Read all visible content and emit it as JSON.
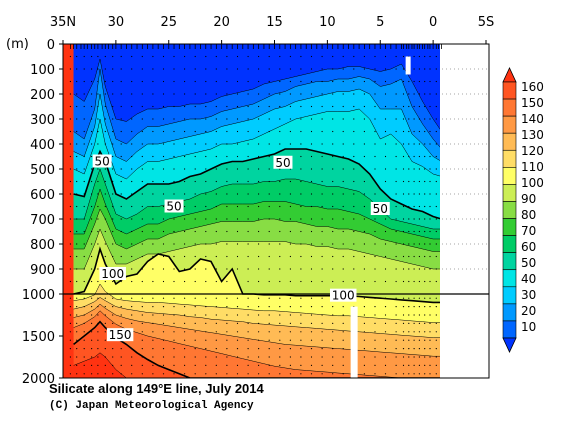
{
  "chart_data": {
    "type": "heatmap",
    "title": "Silicate along 149°E line, July 2014",
    "credit": "(C) Japan Meteorological Agency",
    "ylabel": "(m)",
    "x_ticks": [
      "35N",
      "30",
      "25",
      "20",
      "15",
      "10",
      "5",
      "0",
      "5S"
    ],
    "x_tick_values": [
      35,
      30,
      25,
      20,
      15,
      10,
      5,
      0,
      -5
    ],
    "xlim": [
      35,
      -5
    ],
    "y_ticks_upper": [
      "0",
      "100",
      "200",
      "300",
      "400",
      "500",
      "600",
      "700",
      "800",
      "900",
      "1000"
    ],
    "y_tick_values_upper": [
      0,
      100,
      200,
      300,
      400,
      500,
      600,
      700,
      800,
      900,
      1000
    ],
    "y_ticks_lower": [
      "1500",
      "2000"
    ],
    "y_tick_values_lower": [
      1500,
      2000
    ],
    "ylim": [
      0,
      2000
    ],
    "colorbar_levels": [
      "10",
      "20",
      "30",
      "40",
      "50",
      "60",
      "70",
      "80",
      "90",
      "100",
      "110",
      "120",
      "130",
      "140",
      "150",
      "160"
    ],
    "colorbar_colors": [
      "#0033ff",
      "#0066ff",
      "#0099ff",
      "#00ccff",
      "#00e5e5",
      "#00d4a0",
      "#00cc66",
      "#33cc33",
      "#88dd44",
      "#ccee55",
      "#ffff66",
      "#ffdd66",
      "#ffbb55",
      "#ff9944",
      "#ff7733",
      "#ff5522",
      "#ff3311"
    ],
    "contour_labels": [
      {
        "text": "50",
        "lat": 31.3,
        "depth": 470
      },
      {
        "text": "50",
        "lat": 24.5,
        "depth": 650
      },
      {
        "text": "50",
        "lat": 14.2,
        "depth": 475
      },
      {
        "text": "50",
        "lat": 5.0,
        "depth": 660
      },
      {
        "text": "100",
        "lat": 30.3,
        "depth": 920
      },
      {
        "text": "100",
        "lat": 8.5,
        "depth": 1020
      },
      {
        "text": "150",
        "lat": 29.6,
        "depth": 1490
      }
    ],
    "stations": [
      34.3,
      34.0,
      33.7,
      33.3,
      33.0,
      32.7,
      32.3,
      32.0,
      31.7,
      31.3,
      31.0,
      30.7,
      30.3,
      30.0,
      29.5,
      29.0,
      28.5,
      28.0,
      27.5,
      27.0,
      26.5,
      26.0,
      25.5,
      25.0,
      24.5,
      24.0,
      23.5,
      23.0,
      22.5,
      22.0,
      21.5,
      21.0,
      20.5,
      20.0,
      19.5,
      19.0,
      18.5,
      18.0,
      17.5,
      17.0,
      16.5,
      16.0,
      15.5,
      15.0,
      14.5,
      14.0,
      13.5,
      13.0,
      12.5,
      12.0,
      11.5,
      11.0,
      10.5,
      10.0,
      9.5,
      9.0,
      8.5,
      8.0,
      7.5,
      7.0,
      6.5,
      6.0,
      5.5,
      5.0,
      4.5,
      4.0,
      3.5,
      3.0,
      2.8,
      2.5,
      2.3,
      2.0,
      1.8,
      1.5,
      1.3,
      1.0,
      0.8,
      0.5,
      0.3,
      0.0,
      -0.3,
      -0.5,
      -0.8
    ],
    "profile": {
      "lat": [
        34,
        33,
        32,
        31.5,
        31,
        30,
        29,
        28,
        27,
        26,
        25,
        24,
        23,
        22,
        21,
        20,
        19,
        18,
        17,
        16,
        15,
        14,
        13,
        12,
        11,
        10,
        9,
        8,
        7,
        6,
        5,
        4,
        3,
        2,
        1,
        0,
        -0.8
      ],
      "iso_depth": {
        "10": [
          200,
          230,
          140,
          60,
          170,
          300,
          310,
          280,
          260,
          260,
          250,
          250,
          240,
          240,
          230,
          210,
          200,
          190,
          180,
          160,
          150,
          140,
          130,
          120,
          110,
          100,
          100,
          90,
          90,
          100,
          110,
          100,
          80,
          150,
          230,
          300,
          350
        ],
        "20": [
          350,
          380,
          260,
          100,
          240,
          380,
          400,
          360,
          330,
          330,
          320,
          310,
          300,
          300,
          290,
          270,
          260,
          250,
          240,
          220,
          200,
          190,
          170,
          160,
          150,
          150,
          140,
          140,
          130,
          140,
          170,
          160,
          140,
          250,
          320,
          380,
          420
        ],
        "30": [
          430,
          450,
          330,
          200,
          320,
          450,
          470,
          430,
          400,
          400,
          390,
          380,
          370,
          360,
          350,
          330,
          320,
          310,
          300,
          280,
          260,
          250,
          230,
          220,
          210,
          200,
          190,
          190,
          180,
          200,
          260,
          260,
          260,
          360,
          400,
          450,
          470
        ],
        "40": [
          500,
          520,
          400,
          300,
          400,
          520,
          540,
          500,
          470,
          470,
          460,
          450,
          440,
          430,
          420,
          400,
          400,
          390,
          380,
          360,
          340,
          320,
          300,
          290,
          280,
          270,
          270,
          270,
          260,
          300,
          380,
          360,
          400,
          470,
          490,
          520,
          530
        ],
        "50": [
          600,
          610,
          480,
          430,
          470,
          600,
          620,
          590,
          560,
          560,
          560,
          550,
          530,
          520,
          500,
          480,
          470,
          470,
          460,
          450,
          440,
          420,
          420,
          420,
          430,
          440,
          450,
          460,
          480,
          520,
          580,
          620,
          640,
          660,
          670,
          690,
          700
        ],
        "60": [
          700,
          700,
          560,
          500,
          560,
          680,
          700,
          680,
          650,
          650,
          640,
          630,
          620,
          600,
          590,
          570,
          560,
          560,
          560,
          550,
          550,
          540,
          540,
          550,
          560,
          570,
          570,
          580,
          590,
          620,
          660,
          700,
          710,
          720,
          730,
          740,
          740
        ],
        "70": [
          760,
          760,
          650,
          580,
          640,
          740,
          760,
          740,
          720,
          720,
          700,
          690,
          680,
          670,
          660,
          640,
          640,
          640,
          640,
          630,
          630,
          630,
          640,
          650,
          650,
          660,
          660,
          670,
          680,
          700,
          720,
          740,
          750,
          760,
          770,
          780,
          780
        ],
        "80": [
          820,
          820,
          720,
          660,
          700,
          800,
          820,
          800,
          780,
          780,
          760,
          750,
          740,
          730,
          720,
          710,
          710,
          710,
          710,
          700,
          700,
          710,
          710,
          720,
          730,
          730,
          740,
          740,
          750,
          760,
          780,
          790,
          800,
          810,
          820,
          830,
          830
        ],
        "90": [
          900,
          900,
          800,
          740,
          790,
          880,
          880,
          860,
          840,
          840,
          830,
          820,
          810,
          800,
          800,
          790,
          790,
          790,
          790,
          790,
          790,
          790,
          800,
          800,
          810,
          810,
          820,
          820,
          830,
          840,
          850,
          860,
          870,
          880,
          890,
          900,
          900
        ],
        "100": [
          1000,
          990,
          900,
          820,
          880,
          960,
          930,
          920,
          870,
          840,
          850,
          910,
          900,
          860,
          870,
          950,
          900,
          1000,
          1000,
          1010,
          1010,
          1010,
          1020,
          1020,
          1020,
          1020,
          1020,
          1020,
          1030,
          1040,
          1050,
          1060,
          1070,
          1080,
          1090,
          1100,
          1100
        ],
        "110": [
          1080,
          1060,
          1010,
          960,
          990,
          1060,
          1080,
          1090,
          1100,
          1100,
          1110,
          1120,
          1130,
          1140,
          1150,
          1160,
          1170,
          1180,
          1190,
          1200,
          1200,
          1210,
          1220,
          1230,
          1240,
          1250,
          1260,
          1260,
          1270,
          1280,
          1290,
          1300,
          1310,
          1320,
          1330,
          1340,
          1340
        ],
        "120": [
          1180,
          1150,
          1090,
          1040,
          1080,
          1150,
          1180,
          1200,
          1220,
          1230,
          1240,
          1250,
          1270,
          1280,
          1300,
          1310,
          1320,
          1330,
          1350,
          1360,
          1370,
          1380,
          1390,
          1400,
          1410,
          1420,
          1430,
          1440,
          1450,
          1460,
          1470,
          1480,
          1490,
          1500,
          1510,
          1520,
          1520
        ],
        "130": [
          1280,
          1250,
          1180,
          1120,
          1170,
          1250,
          1290,
          1320,
          1340,
          1360,
          1380,
          1400,
          1420,
          1440,
          1460,
          1480,
          1500,
          1520,
          1540,
          1560,
          1580,
          1600,
          1610,
          1620,
          1630,
          1640,
          1650,
          1660,
          1670,
          1680,
          1690,
          1700,
          1710,
          1720,
          1730,
          1740,
          1740
        ],
        "140": [
          1400,
          1350,
          1270,
          1200,
          1260,
          1360,
          1420,
          1460,
          1500,
          1530,
          1560,
          1590,
          1620,
          1650,
          1680,
          1710,
          1740,
          1770,
          1800,
          1830,
          1860,
          1880,
          1900,
          1910,
          1920,
          1930,
          1940,
          1950,
          1960,
          1970,
          1980,
          1990,
          2000,
          2000,
          2000,
          2000,
          2000
        ],
        "150": [
          1600,
          1500,
          1400,
          1330,
          1400,
          1520,
          1600,
          1700,
          1780,
          1850,
          1900,
          1950,
          2000,
          2000,
          2000,
          2000,
          2000,
          2000,
          2000,
          2000,
          2000,
          2000,
          2000,
          2000,
          2000,
          2000,
          2000,
          2000,
          2000,
          2000,
          2000,
          2000,
          2000,
          2000,
          2000,
          2000,
          2000
        ],
        "160": [
          1850,
          1800,
          1750,
          1700,
          1750,
          1900,
          2000,
          2000,
          2000,
          2000,
          2000,
          2000,
          2000,
          2000,
          2000,
          2000,
          2000,
          2000,
          2000,
          2000,
          2000,
          2000,
          2000,
          2000,
          2000,
          2000,
          2000,
          2000,
          2000,
          2000,
          2000,
          2000,
          2000,
          2000,
          2000,
          2000,
          2000
        ]
      }
    }
  }
}
